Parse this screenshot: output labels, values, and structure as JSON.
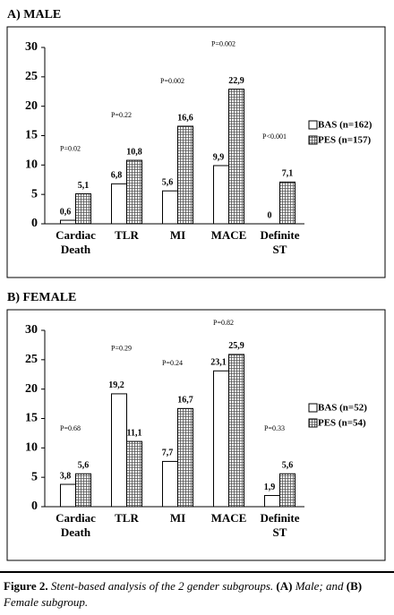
{
  "chart_data": [
    {
      "type": "bar",
      "title": "A) MALE",
      "categories": [
        "Cardiac Death",
        "TLR",
        "MI",
        "MACE",
        "Definite ST"
      ],
      "series": [
        {
          "name": "BAS (n=162)",
          "color": "#ffffff",
          "values": [
            0.6,
            6.8,
            5.6,
            9.9,
            0
          ],
          "value_labels": [
            "0,6",
            "6,8",
            "5,6",
            "9,9",
            "0"
          ]
        },
        {
          "name": "PES (n=157)",
          "color": "#ffffff",
          "hatch": "grid",
          "values": [
            5.1,
            10.8,
            16.6,
            22.9,
            7.1
          ],
          "value_labels": [
            "5,1",
            "10,8",
            "16,6",
            "22,9",
            "7,1"
          ]
        }
      ],
      "annotations": [
        "P=0.02",
        "P=0.22",
        "P=0.002",
        "P=0.002",
        "P<0.001"
      ],
      "ylim": [
        0,
        30
      ],
      "yticks": [
        0,
        5,
        10,
        15,
        20,
        25,
        30
      ],
      "grid": false,
      "legend": "right"
    },
    {
      "type": "bar",
      "title": "B) FEMALE",
      "categories": [
        "Cardiac Death",
        "TLR",
        "MI",
        "MACE",
        "Definite ST"
      ],
      "series": [
        {
          "name": "BAS (n=52)",
          "color": "#ffffff",
          "values": [
            3.8,
            19.2,
            7.7,
            23.1,
            1.9
          ],
          "value_labels": [
            "3,8",
            "19,2",
            "7,7",
            "23,1",
            "1,9"
          ]
        },
        {
          "name": "PES (n=54)",
          "color": "#ffffff",
          "hatch": "grid",
          "values": [
            5.6,
            11.1,
            16.7,
            25.9,
            5.6
          ],
          "value_labels": [
            "5,6",
            "11,1",
            "16,7",
            "25,9",
            "5,6"
          ]
        }
      ],
      "annotations": [
        "P=0.68",
        "P=0.29",
        "P=0.24",
        "P=0.82",
        "P=0.33"
      ],
      "ylim": [
        0,
        30
      ],
      "yticks": [
        0,
        5,
        10,
        15,
        20,
        25,
        30
      ],
      "grid": false,
      "legend": "right"
    }
  ],
  "caption": [
    {
      "text": "Figure 2.",
      "bold": true
    },
    {
      "text": "Stent-based analysis of the 2 gender subgroups.",
      "bold": false
    },
    {
      "text": "(A)",
      "bold": true
    },
    {
      "text": "Male; and",
      "bold": false
    },
    {
      "text": "(B)",
      "bold": true
    },
    {
      "text": "Female subgroup.",
      "bold": false
    }
  ]
}
